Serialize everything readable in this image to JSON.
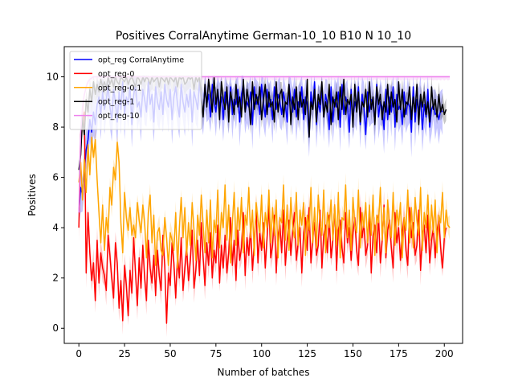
{
  "chart_data": {
    "type": "line",
    "title": "Positives CorralAnytime German-10_10 B10 N 10_10",
    "xlabel": "Number of batches",
    "ylabel": "Positives",
    "xlim": [
      -8,
      210
    ],
    "ylim": [
      -0.6,
      11.2
    ],
    "xticks": [
      0,
      25,
      50,
      75,
      100,
      125,
      150,
      175,
      200
    ],
    "yticks": [
      0,
      2,
      4,
      6,
      8,
      10
    ],
    "grid": false,
    "legend_position": "top-left",
    "series": [
      {
        "name": "opt_reg CorralAnytime",
        "color": "#0000ff",
        "band": 1.0,
        "values": [
          4.6,
          5.6,
          5.3,
          6.3,
          7.1,
          7.5,
          8.3,
          7.8,
          8.6,
          8.1,
          8.9,
          9.2,
          8.5,
          9.4,
          8.7,
          9.1,
          9.6,
          8.8,
          8.3,
          9.5,
          9.0,
          8.2,
          9.4,
          8.7,
          9.8,
          8.5,
          9.2,
          8.9,
          9.6,
          8.1,
          9.3,
          9.7,
          8.8,
          9.0,
          8.4,
          9.5,
          9.1,
          8.6,
          9.8,
          8.9,
          9.3,
          8.2,
          9.6,
          9.0,
          8.7,
          9.4,
          8.5,
          9.7,
          9.1,
          8.8,
          9.5,
          8.3,
          9.2,
          9.6,
          8.9,
          8.4,
          9.7,
          9.0,
          8.6,
          9.3,
          8.8,
          9.5,
          8.2,
          9.4,
          9.1,
          8.7,
          9.8,
          9.0,
          8.5,
          9.6,
          8.9,
          9.3,
          8.4,
          9.7,
          9.0,
          8.6,
          9.5,
          8.8,
          9.2,
          8.3,
          9.4,
          9.0,
          8.7,
          9.6,
          8.5,
          9.1,
          8.9,
          9.5,
          8.2,
          9.3,
          9.7,
          8.6,
          9.0,
          8.8,
          9.4,
          8.1,
          9.6,
          8.9,
          9.2,
          8.5,
          9.7,
          9.0,
          8.4,
          9.5,
          8.8,
          9.1,
          8.3,
          9.6,
          8.7,
          9.3,
          9.0,
          8.5,
          9.4,
          8.9,
          8.2,
          9.7,
          9.1,
          8.6,
          9.5,
          8.4,
          9.0,
          8.8,
          9.6,
          8.3,
          9.2,
          8.9,
          7.6,
          9.4,
          8.7,
          9.8,
          8.1,
          9.0,
          8.6,
          9.5,
          8.4,
          9.3,
          8.9,
          7.9,
          9.6,
          8.2,
          9.1,
          8.8,
          9.4,
          8.0,
          9.7,
          8.5,
          9.2,
          8.9,
          7.8,
          9.5,
          8.3,
          9.0,
          8.7,
          9.6,
          8.1,
          9.3,
          8.8,
          7.7,
          9.4,
          8.6,
          9.1,
          8.9,
          8.2,
          9.7,
          8.4,
          9.0,
          8.8,
          7.9,
          9.5,
          8.3,
          9.2,
          8.6,
          9.6,
          8.0,
          9.3,
          8.7,
          8.9,
          8.1,
          9.4,
          8.5,
          9.0,
          8.8,
          7.8,
          9.6,
          8.2,
          9.1,
          8.6,
          9.3,
          7.9,
          8.9,
          8.4,
          9.5,
          8.0,
          8.7,
          8.9,
          8.5,
          8.6,
          8.3,
          8.7,
          8.6
        ]
      },
      {
        "name": "opt_reg-0",
        "color": "#ff0000",
        "band": 0.6,
        "values": [
          4.0,
          7.7,
          8.3,
          8.6,
          2.2,
          4.6,
          3.0,
          1.9,
          2.6,
          1.1,
          3.5,
          1.8,
          3.0,
          2.4,
          2.1,
          1.5,
          3.7,
          2.9,
          2.0,
          1.2,
          3.4,
          2.6,
          0.8,
          1.9,
          0.3,
          2.5,
          1.7,
          0.5,
          2.3,
          1.4,
          3.6,
          2.2,
          0.9,
          2.8,
          1.6,
          3.3,
          2.0,
          1.1,
          3.5,
          2.4,
          1.8,
          2.9,
          1.3,
          3.1,
          2.1,
          1.5,
          3.7,
          2.5,
          0.2,
          2.2,
          1.7,
          3.4,
          2.6,
          1.2,
          2.9,
          2.0,
          3.6,
          1.5,
          2.4,
          3.2,
          1.9,
          2.7,
          3.9,
          1.6,
          2.3,
          3.5,
          2.1,
          4.2,
          2.8,
          1.7,
          3.4,
          2.5,
          3.8,
          2.0,
          3.1,
          2.6,
          4.1,
          1.8,
          3.3,
          2.4,
          3.7,
          2.2,
          3.0,
          4.4,
          2.5,
          3.5,
          1.9,
          3.9,
          2.7,
          3.2,
          4.6,
          2.1,
          3.6,
          2.9,
          4.0,
          2.3,
          3.4,
          4.8,
          2.6,
          3.8,
          3.1,
          4.2,
          2.4,
          3.6,
          4.9,
          2.8,
          3.3,
          4.5,
          2.2,
          3.7,
          4.1,
          3.0,
          4.7,
          2.5,
          3.5,
          4.3,
          2.9,
          3.9,
          4.6,
          2.7,
          3.4,
          4.0,
          2.2,
          3.8,
          4.4,
          3.1,
          4.8,
          2.6,
          3.6,
          4.2,
          2.9,
          3.3,
          4.7,
          2.4,
          3.7,
          4.1,
          3.0,
          4.5,
          2.8,
          3.5,
          4.9,
          2.3,
          3.9,
          4.3,
          3.2,
          2.6,
          4.6,
          3.4,
          4.0,
          2.7,
          3.8,
          4.4,
          3.1,
          2.5,
          4.8,
          3.6,
          4.2,
          2.9,
          3.3,
          4.7,
          2.2,
          3.7,
          4.1,
          3.0,
          4.5,
          2.6,
          3.5,
          4.9,
          2.8,
          3.9,
          4.3,
          3.2,
          2.4,
          4.6,
          3.4,
          4.0,
          2.7,
          3.8,
          4.4,
          3.1,
          2.5,
          4.8,
          3.6,
          4.2,
          2.9,
          3.3,
          4.7,
          2.3,
          3.7,
          4.1,
          3.0,
          4.5,
          2.6,
          3.5,
          4.0,
          2.8,
          3.9,
          4.3,
          3.2,
          2.4,
          3.6,
          4.0
        ]
      },
      {
        "name": "opt_reg-0.1",
        "color": "#ffa500",
        "band": 0.5,
        "values": [
          5.8,
          6.6,
          5.1,
          6.7,
          5.4,
          7.3,
          6.1,
          7.6,
          6.8,
          7.5,
          5.9,
          4.6,
          3.4,
          4.9,
          3.1,
          4.4,
          3.8,
          5.6,
          4.9,
          6.4,
          5.9,
          7.4,
          6.6,
          4.2,
          3.0,
          5.4,
          4.4,
          3.9,
          4.8,
          3.7,
          4.1,
          3.6,
          5.0,
          4.3,
          3.8,
          4.9,
          4.2,
          2.8,
          4.6,
          5.3,
          3.4,
          4.5,
          2.5,
          3.8,
          4.0,
          3.1,
          2.9,
          4.4,
          3.6,
          2.5,
          3.8,
          3.5,
          3.1,
          4.6,
          2.4,
          4.0,
          5.2,
          3.6,
          4.8,
          2.9,
          4.2,
          3.3,
          5.0,
          3.9,
          2.7,
          4.5,
          3.7,
          5.3,
          4.1,
          3.0,
          4.7,
          3.4,
          5.1,
          2.8,
          4.3,
          3.8,
          5.5,
          3.2,
          4.6,
          4.0,
          5.7,
          3.5,
          4.9,
          2.6,
          4.2,
          5.4,
          3.3,
          4.8,
          3.9,
          5.2,
          3.0,
          4.5,
          4.1,
          5.6,
          3.6,
          4.7,
          2.9,
          5.0,
          4.3,
          3.8,
          5.3,
          3.2,
          4.6,
          4.0,
          5.5,
          3.4,
          4.8,
          3.7,
          5.1,
          2.8,
          4.4,
          4.2,
          5.7,
          3.5,
          4.9,
          3.1,
          5.2,
          4.0,
          3.6,
          5.4,
          3.3,
          4.7,
          4.1,
          5.0,
          2.9,
          4.5,
          3.9,
          5.6,
          3.4,
          4.8,
          3.2,
          5.3,
          4.2,
          3.7,
          5.5,
          3.0,
          4.6,
          4.0,
          5.1,
          3.5,
          4.9,
          3.3,
          5.4,
          2.8,
          4.4,
          4.3,
          5.7,
          3.6,
          4.7,
          3.1,
          5.2,
          4.1,
          3.8,
          5.5,
          3.2,
          4.6,
          4.0,
          5.0,
          3.4,
          4.9,
          3.7,
          5.3,
          2.9,
          4.5,
          4.2,
          5.6,
          3.5,
          4.8,
          3.0,
          5.1,
          4.0,
          3.6,
          5.4,
          3.3,
          4.7,
          4.1,
          5.0,
          2.8,
          4.4,
          3.9,
          5.5,
          3.4,
          4.8,
          3.2,
          5.2,
          4.3,
          3.7,
          5.6,
          3.1,
          4.6,
          4.0,
          5.3,
          3.5,
          4.9,
          3.8,
          5.1,
          3.0,
          4.5,
          4.2,
          5.4,
          3.6,
          4.7,
          4.1,
          4.0
        ]
      },
      {
        "name": "opt_reg-1",
        "color": "#000000",
        "band": 0.5,
        "values": [
          6.3,
          6.9,
          8.4,
          7.7,
          9.1,
          8.6,
          9.5,
          9.0,
          9.8,
          9.3,
          9.7,
          9.4,
          9.9,
          9.6,
          9.8,
          9.5,
          10.0,
          9.7,
          9.9,
          9.6,
          10.0,
          9.8,
          9.7,
          10.0,
          9.9,
          9.8,
          10.0,
          9.7,
          9.9,
          10.0,
          9.8,
          9.6,
          10.0,
          9.9,
          9.7,
          10.0,
          9.8,
          10.0,
          9.9,
          9.7,
          10.0,
          9.8,
          9.9,
          10.0,
          9.6,
          10.0,
          9.9,
          9.8,
          10.0,
          9.7,
          10.0,
          9.9,
          9.8,
          10.0,
          9.6,
          10.0,
          9.9,
          10.0,
          9.7,
          9.8,
          10.0,
          9.9,
          10.0,
          9.5,
          10.0,
          9.8,
          10.0,
          9.2,
          8.4,
          9.7,
          8.8,
          9.9,
          9.3,
          8.6,
          10.0,
          8.9,
          9.5,
          8.3,
          9.8,
          9.1,
          8.7,
          9.6,
          8.2,
          9.4,
          9.0,
          8.5,
          9.7,
          8.8,
          9.2,
          8.4,
          9.9,
          8.6,
          9.5,
          9.0,
          8.1,
          9.8,
          8.7,
          9.3,
          8.9,
          9.6,
          8.3,
          9.1,
          9.7,
          8.5,
          9.4,
          8.8,
          9.0,
          8.2,
          9.8,
          8.6,
          9.3,
          9.5,
          8.4,
          9.0,
          8.9,
          9.7,
          8.1,
          9.2,
          8.7,
          9.6,
          8.3,
          9.4,
          8.8,
          9.1,
          8.5,
          9.9,
          7.6,
          9.0,
          8.7,
          9.5,
          8.2,
          9.3,
          8.9,
          9.8,
          8.4,
          9.0,
          8.6,
          9.7,
          8.1,
          9.2,
          8.8,
          9.4,
          8.3,
          9.6,
          8.7,
          9.9,
          8.5,
          9.1,
          8.9,
          9.3,
          8.0,
          9.7,
          8.6,
          9.4,
          8.2,
          9.0,
          8.8,
          9.5,
          8.4,
          9.8,
          8.7,
          9.2,
          8.1,
          9.6,
          8.9,
          9.3,
          8.3,
          9.0,
          8.6,
          9.7,
          8.5,
          9.4,
          8.8,
          9.1,
          8.2,
          9.8,
          8.7,
          9.5,
          8.4,
          9.0,
          8.9,
          9.6,
          8.3,
          9.2,
          8.6,
          9.7,
          8.1,
          9.3,
          8.8,
          9.4,
          8.5,
          9.0,
          8.2,
          9.6,
          8.7,
          9.1,
          8.4,
          9.3,
          8.6,
          8.9,
          8.5,
          8.7
        ]
      },
      {
        "name": "opt_reg-10",
        "color": "#ee82ee",
        "band": 0.15,
        "values": [
          4.6,
          7.8,
          8.8,
          9.3,
          9.6,
          9.8,
          9.9,
          9.95,
          10.0,
          10.0,
          10.0,
          10.0,
          10.0,
          10.0,
          10.0,
          10.0,
          10.0,
          10.0,
          10.0,
          10.0,
          10.0,
          10.0,
          10.0,
          10.0,
          10.0,
          10.0,
          10.0,
          10.0,
          10.0,
          10.0,
          10.0,
          10.0,
          10.0,
          10.0,
          10.0,
          10.0,
          10.0,
          10.0,
          10.0,
          10.0,
          10.0,
          10.0,
          10.0,
          10.0,
          10.0,
          10.0,
          10.0,
          10.0,
          10.0,
          10.0,
          10.0,
          10.0,
          10.0,
          10.0,
          10.0,
          10.0,
          10.0,
          10.0,
          10.0,
          10.0,
          10.0,
          10.0,
          10.0,
          10.0,
          10.0,
          10.0,
          10.0,
          10.0,
          10.0,
          10.0,
          10.0,
          10.0,
          10.0,
          10.0,
          10.0,
          10.0,
          10.0,
          10.0,
          10.0,
          10.0,
          10.0,
          10.0,
          10.0,
          10.0,
          10.0,
          10.0,
          10.0,
          10.0,
          10.0,
          10.0,
          10.0,
          10.0,
          10.0,
          10.0,
          10.0,
          10.0,
          10.0,
          10.0,
          10.0,
          10.0,
          10.0,
          10.0,
          10.0,
          10.0,
          10.0,
          10.0,
          10.0,
          10.0,
          10.0,
          10.0,
          10.0,
          10.0,
          10.0,
          10.0,
          10.0,
          10.0,
          10.0,
          10.0,
          10.0,
          10.0,
          10.0,
          10.0,
          10.0,
          10.0,
          10.0,
          10.0,
          10.0,
          10.0,
          10.0,
          10.0,
          10.0,
          10.0,
          10.0,
          10.0,
          10.0,
          10.0,
          10.0,
          10.0,
          10.0,
          10.0,
          10.0,
          10.0,
          10.0,
          10.0,
          10.0,
          10.0,
          10.0,
          10.0,
          10.0,
          10.0,
          10.0,
          10.0,
          10.0,
          10.0,
          10.0,
          10.0,
          10.0,
          10.0,
          10.0,
          10.0,
          10.0,
          10.0,
          10.0,
          10.0,
          10.0,
          10.0,
          10.0,
          10.0,
          10.0,
          10.0,
          10.0,
          10.0,
          10.0,
          10.0,
          10.0,
          10.0,
          10.0,
          10.0,
          10.0,
          10.0,
          10.0,
          10.0,
          10.0,
          10.0,
          10.0,
          10.0,
          10.0,
          10.0,
          10.0,
          10.0,
          10.0,
          10.0,
          10.0,
          10.0,
          10.0,
          10.0,
          10.0,
          10.0,
          10.0,
          10.0,
          10.0,
          10.0,
          10.0,
          10.0
        ]
      }
    ]
  }
}
